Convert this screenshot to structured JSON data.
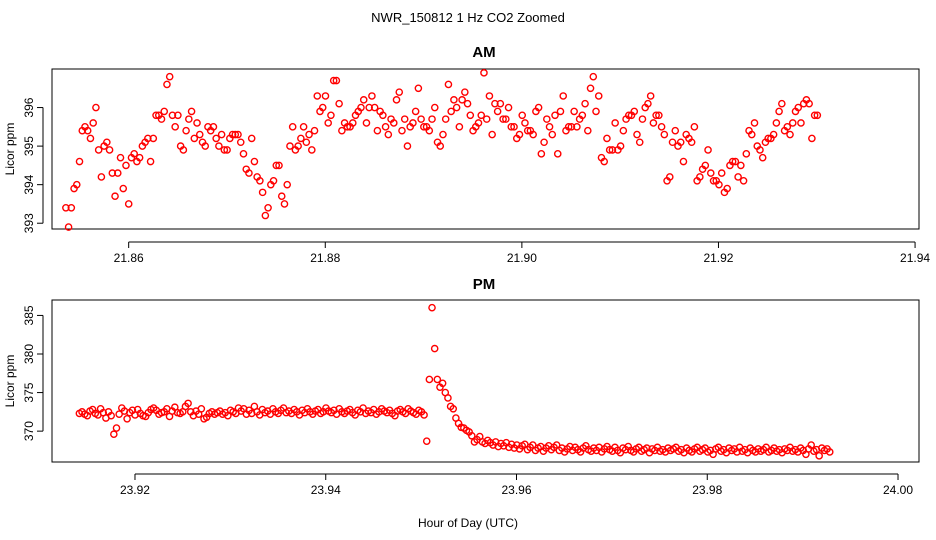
{
  "figure": {
    "title": "NWR_150812  1 Hz CO2 Zoomed",
    "xlabel": "Hour of Day (UTC)"
  },
  "colors": {
    "points": "#ff0000",
    "axes": "#000000",
    "background": "#ffffff"
  },
  "chart_data": [
    {
      "type": "scatter",
      "title": "AM",
      "ylabel": "Licor ppm",
      "xlim": [
        21.8522,
        21.9404
      ],
      "ylim": [
        392.85,
        397.0
      ],
      "xticks": [
        21.86,
        21.88,
        21.9,
        21.92,
        21.94
      ],
      "xtick_labels": [
        "21.86",
        "21.88",
        "21.90",
        "21.92",
        "21.94"
      ],
      "yticks": [
        393,
        394,
        395,
        396
      ],
      "ytick_labels": [
        "393",
        "394",
        "395",
        "396"
      ],
      "series": [
        {
          "name": "Licor CO2",
          "x_start": 21.85361,
          "x_step": 0.000278,
          "values": [
            393.4,
            392.9,
            393.4,
            393.9,
            394.0,
            394.6,
            395.4,
            395.5,
            395.4,
            395.2,
            395.6,
            396.0,
            394.9,
            394.2,
            395.0,
            395.1,
            394.9,
            394.3,
            393.7,
            394.3,
            394.7,
            393.9,
            394.5,
            393.5,
            394.7,
            394.8,
            394.6,
            394.7,
            395.0,
            395.1,
            395.2,
            394.6,
            395.2,
            395.8,
            395.8,
            395.7,
            395.9,
            396.6,
            396.8,
            395.8,
            395.5,
            395.8,
            395.0,
            394.9,
            395.4,
            395.7,
            395.9,
            395.2,
            395.6,
            395.3,
            395.1,
            395.0,
            395.5,
            395.4,
            395.5,
            395.2,
            395.0,
            395.3,
            394.9,
            394.9,
            395.2,
            395.3,
            395.3,
            395.3,
            395.1,
            394.8,
            394.4,
            394.3,
            395.2,
            394.6,
            394.2,
            394.1,
            393.8,
            393.2,
            393.4,
            394.0,
            394.1,
            394.5,
            394.5,
            393.7,
            393.5,
            394.0,
            395.0,
            395.5,
            394.9,
            395.0,
            395.2,
            395.5,
            395.1,
            395.3,
            394.9,
            395.4,
            396.3,
            395.9,
            396.0,
            396.3,
            395.6,
            395.8,
            396.7,
            396.7,
            396.1,
            395.4,
            395.6,
            395.5,
            395.5,
            395.6,
            395.8,
            395.9,
            396.0,
            396.2,
            395.6,
            396.0,
            396.3,
            396.0,
            395.4,
            395.9,
            395.8,
            395.5,
            395.3,
            395.7,
            395.6,
            396.2,
            396.4,
            395.4,
            395.7,
            395.0,
            395.5,
            395.6,
            395.9,
            396.5,
            395.7,
            395.5,
            395.5,
            395.4,
            395.7,
            396.0,
            395.1,
            395.0,
            395.3,
            395.7,
            396.6,
            395.9,
            396.2,
            396.0,
            395.5,
            396.2,
            396.4,
            396.1,
            395.8,
            395.4,
            395.5,
            395.6,
            395.8,
            396.9,
            395.7,
            396.3,
            395.3,
            396.1,
            395.9,
            396.1,
            395.7,
            395.7,
            396.0,
            395.5,
            395.5,
            395.2,
            395.3,
            395.8,
            395.6,
            395.4,
            395.4,
            395.3,
            395.9,
            396.0,
            394.8,
            395.1,
            395.7,
            395.5,
            395.3,
            395.8,
            394.8,
            395.9,
            396.3,
            395.4,
            395.5,
            395.5,
            395.9,
            395.5,
            395.7,
            395.8,
            396.1,
            395.4,
            396.5,
            396.8,
            395.9,
            396.3,
            394.7,
            394.6,
            395.2,
            394.9,
            394.9,
            395.6,
            394.9,
            395.0,
            395.4,
            395.7,
            395.8,
            395.8,
            395.9,
            395.3,
            395.1,
            395.7,
            396.0,
            396.1,
            396.3,
            395.6,
            395.8,
            395.8,
            395.5,
            395.3,
            394.1,
            394.2,
            395.1,
            395.4,
            395.0,
            395.1,
            394.6,
            395.3,
            395.2,
            395.1,
            395.5,
            394.1,
            394.2,
            394.4,
            394.5,
            394.9,
            394.3,
            394.1,
            394.1,
            394.0,
            394.3,
            393.8,
            393.9,
            394.5,
            394.6,
            394.6,
            394.2,
            394.5,
            394.1,
            394.8,
            395.4,
            395.3,
            395.6,
            395.0,
            394.9,
            394.7,
            395.1,
            395.2,
            395.2,
            395.3,
            395.6,
            395.9,
            396.1,
            395.4,
            395.5,
            395.3,
            395.6,
            395.9,
            396.0,
            395.6,
            396.1,
            396.2,
            396.1,
            395.2,
            395.8,
            395.8
          ]
        }
      ]
    },
    {
      "type": "scatter",
      "title": "PM",
      "ylabel": "Licor ppm",
      "xlim": [
        23.9113,
        24.0022
      ],
      "ylim": [
        366.0,
        387.0
      ],
      "xticks": [
        23.92,
        23.94,
        23.96,
        23.98,
        24.0
      ],
      "xtick_labels": [
        "23.92",
        "23.94",
        "23.96",
        "23.98",
        "24.00"
      ],
      "yticks": [
        370,
        375,
        380,
        385
      ],
      "ytick_labels": [
        "370",
        "375",
        "380",
        "385"
      ],
      "series": [
        {
          "name": "Licor CO2",
          "x_start": 23.91417,
          "x_step": 0.000278,
          "values": [
            372.3,
            372.5,
            372.2,
            372.0,
            372.6,
            372.8,
            372.3,
            372.1,
            372.9,
            372.4,
            371.7,
            372.5,
            372.0,
            369.6,
            370.4,
            372.2,
            373.0,
            372.6,
            371.6,
            372.4,
            372.7,
            372.1,
            372.8,
            372.3,
            372.0,
            371.9,
            372.4,
            372.8,
            373.0,
            372.7,
            372.2,
            372.4,
            372.5,
            372.9,
            371.9,
            372.6,
            373.1,
            372.4,
            372.3,
            372.5,
            373.2,
            373.6,
            372.5,
            372.0,
            372.6,
            372.2,
            372.9,
            371.6,
            371.8,
            372.3,
            372.5,
            372.2,
            372.4,
            372.6,
            372.2,
            372.4,
            372.0,
            372.7,
            372.5,
            372.3,
            373.0,
            372.6,
            372.9,
            372.2,
            372.7,
            372.3,
            373.2,
            372.5,
            372.1,
            372.8,
            372.4,
            372.6,
            372.2,
            372.9,
            372.5,
            372.3,
            372.7,
            373.0,
            372.4,
            372.6,
            372.3,
            372.8,
            372.5,
            372.1,
            372.7,
            372.4,
            372.9,
            372.5,
            372.2,
            372.6,
            372.8,
            372.3,
            372.5,
            373.0,
            372.6,
            372.4,
            372.7,
            372.2,
            372.9,
            372.5,
            372.3,
            372.6,
            372.8,
            372.4,
            372.1,
            372.7,
            372.5,
            373.0,
            372.3,
            372.6,
            372.4,
            372.8,
            372.2,
            372.5,
            372.9,
            372.6,
            372.4,
            372.7,
            372.3,
            372.0,
            372.6,
            372.8,
            372.5,
            372.3,
            372.9,
            372.6,
            372.4,
            372.2,
            372.7,
            372.5,
            372.1,
            368.7,
            376.7,
            386.0,
            380.7,
            376.7,
            375.7,
            376.2,
            375.0,
            374.3,
            373.2,
            372.9,
            371.7,
            371.0,
            370.5,
            370.4,
            370.1,
            369.9,
            369.4,
            368.6,
            368.9,
            369.3,
            368.6,
            368.4,
            368.8,
            368.5,
            368.2,
            368.6,
            368.0,
            368.4,
            368.1,
            368.5,
            367.9,
            368.3,
            367.8,
            368.2,
            367.7,
            368.1,
            368.3,
            367.6,
            367.9,
            368.2,
            367.5,
            367.8,
            368.0,
            367.4,
            367.8,
            368.1,
            367.6,
            367.9,
            368.2,
            367.5,
            367.8,
            367.3,
            367.7,
            368.0,
            367.5,
            367.9,
            367.6,
            367.3,
            367.8,
            368.1,
            367.6,
            367.4,
            367.8,
            367.5,
            367.9,
            367.3,
            367.7,
            368.0,
            367.6,
            367.4,
            367.9,
            367.5,
            367.2,
            367.8,
            367.6,
            368.0,
            367.5,
            367.3,
            367.7,
            367.9,
            367.4,
            367.6,
            367.8,
            367.2,
            367.7,
            367.5,
            367.9,
            367.4,
            367.6,
            367.3,
            367.8,
            367.5,
            367.7,
            367.9,
            367.4,
            367.6,
            367.2,
            367.8,
            367.5,
            367.3,
            367.7,
            367.9,
            367.4,
            367.6,
            367.8,
            367.3,
            367.5,
            367.0,
            367.7,
            367.9,
            367.4,
            367.6,
            367.2,
            367.8,
            367.5,
            367.7,
            367.3,
            367.9,
            367.4,
            367.6,
            367.2,
            367.8,
            367.5,
            367.3,
            367.7,
            367.4,
            367.6,
            367.9,
            367.3,
            367.5,
            367.8,
            367.4,
            367.6,
            367.2,
            367.7,
            367.5,
            367.9,
            367.4,
            367.6,
            367.3,
            367.8,
            367.5,
            367.0,
            367.7,
            368.2,
            367.4,
            367.6,
            366.8,
            367.8,
            367.5,
            367.7,
            367.3
          ]
        }
      ]
    }
  ]
}
